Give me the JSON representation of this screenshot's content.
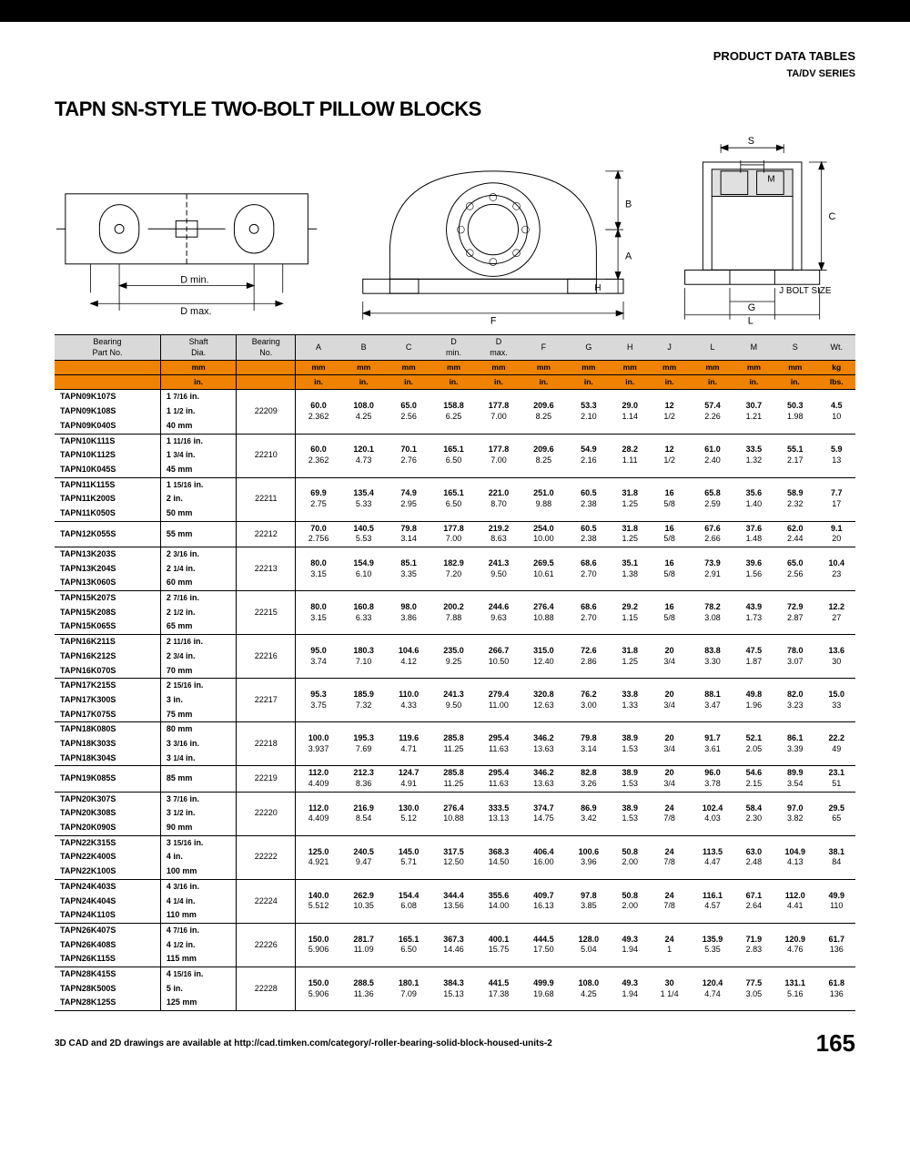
{
  "header": {
    "section": "PRODUCT DATA TABLES",
    "series": "TA/DV SERIES"
  },
  "title": "TAPN SN-STYLE TWO-BOLT PILLOW BLOCKS",
  "diagram_labels": {
    "d_min": "D min.",
    "d_max": "D max.",
    "F": "F",
    "B": "B",
    "A": "A",
    "H": "H",
    "S": "S",
    "M": "M",
    "C": "C",
    "G": "G",
    "L": "L",
    "J": "J BOLT SIZE"
  },
  "columns": [
    "Bearing Part No.",
    "Shaft Dia.",
    "Bearing No.",
    "A",
    "B",
    "C",
    "D min.",
    "D max.",
    "F",
    "G",
    "H",
    "J",
    "L",
    "M",
    "S",
    "Wt."
  ],
  "unit_row1": [
    "",
    "mm",
    "",
    "mm",
    "mm",
    "mm",
    "mm",
    "mm",
    "mm",
    "mm",
    "mm",
    "mm",
    "mm",
    "mm",
    "mm",
    "kg"
  ],
  "unit_row2": [
    "",
    "in.",
    "",
    "in.",
    "in.",
    "in.",
    "in.",
    "in.",
    "in.",
    "in.",
    "in.",
    "in.",
    "in.",
    "in.",
    "in.",
    "lbs."
  ],
  "groups": [
    {
      "parts": [
        [
          "TAPN09K107S",
          "1 7/16 in."
        ],
        [
          "TAPN09K108S",
          "1 1/2 in."
        ],
        [
          "TAPN09K040S",
          "40 mm"
        ]
      ],
      "bearing": "22209",
      "mm": [
        "60.0",
        "108.0",
        "65.0",
        "158.8",
        "177.8",
        "209.6",
        "53.3",
        "29.0",
        "12",
        "57.4",
        "30.7",
        "50.3",
        "4.5"
      ],
      "in": [
        "2.362",
        "4.25",
        "2.56",
        "6.25",
        "7.00",
        "8.25",
        "2.10",
        "1.14",
        "1/2",
        "2.26",
        "1.21",
        "1.98",
        "10"
      ]
    },
    {
      "parts": [
        [
          "TAPN10K111S",
          "1 11/16 in."
        ],
        [
          "TAPN10K112S",
          "1 3/4 in."
        ],
        [
          "TAPN10K045S",
          "45 mm"
        ]
      ],
      "bearing": "22210",
      "mm": [
        "60.0",
        "120.1",
        "70.1",
        "165.1",
        "177.8",
        "209.6",
        "54.9",
        "28.2",
        "12",
        "61.0",
        "33.5",
        "55.1",
        "5.9"
      ],
      "in": [
        "2.362",
        "4.73",
        "2.76",
        "6.50",
        "7.00",
        "8.25",
        "2.16",
        "1.11",
        "1/2",
        "2.40",
        "1.32",
        "2.17",
        "13"
      ]
    },
    {
      "parts": [
        [
          "TAPN11K115S",
          "1 15/16 in."
        ],
        [
          "TAPN11K200S",
          "2 in."
        ],
        [
          "TAPN11K050S",
          "50 mm"
        ]
      ],
      "bearing": "22211",
      "mm": [
        "69.9",
        "135.4",
        "74.9",
        "165.1",
        "221.0",
        "251.0",
        "60.5",
        "31.8",
        "16",
        "65.8",
        "35.6",
        "58.9",
        "7.7"
      ],
      "in": [
        "2.75",
        "5.33",
        "2.95",
        "6.50",
        "8.70",
        "9.88",
        "2.38",
        "1.25",
        "5/8",
        "2.59",
        "1.40",
        "2.32",
        "17"
      ]
    },
    {
      "parts": [
        [
          "TAPN12K055S",
          "55 mm"
        ]
      ],
      "bearing": "22212",
      "mm": [
        "70.0",
        "140.5",
        "79.8",
        "177.8",
        "219.2",
        "254.0",
        "60.5",
        "31.8",
        "16",
        "67.6",
        "37.6",
        "62.0",
        "9.1"
      ],
      "in": [
        "2.756",
        "5.53",
        "3.14",
        "7.00",
        "8.63",
        "10.00",
        "2.38",
        "1.25",
        "5/8",
        "2.66",
        "1.48",
        "2.44",
        "20"
      ]
    },
    {
      "parts": [
        [
          "TAPN13K203S",
          "2 3/16 in."
        ],
        [
          "TAPN13K204S",
          "2 1/4 in."
        ],
        [
          "TAPN13K060S",
          "60 mm"
        ]
      ],
      "bearing": "22213",
      "mm": [
        "80.0",
        "154.9",
        "85.1",
        "182.9",
        "241.3",
        "269.5",
        "68.6",
        "35.1",
        "16",
        "73.9",
        "39.6",
        "65.0",
        "10.4"
      ],
      "in": [
        "3.15",
        "6.10",
        "3.35",
        "7.20",
        "9.50",
        "10.61",
        "2.70",
        "1.38",
        "5/8",
        "2.91",
        "1.56",
        "2.56",
        "23"
      ]
    },
    {
      "parts": [
        [
          "TAPN15K207S",
          "2 7/16 in."
        ],
        [
          "TAPN15K208S",
          "2 1/2 in."
        ],
        [
          "TAPN15K065S",
          "65 mm"
        ]
      ],
      "bearing": "22215",
      "mm": [
        "80.0",
        "160.8",
        "98.0",
        "200.2",
        "244.6",
        "276.4",
        "68.6",
        "29.2",
        "16",
        "78.2",
        "43.9",
        "72.9",
        "12.2"
      ],
      "in": [
        "3.15",
        "6.33",
        "3.86",
        "7.88",
        "9.63",
        "10.88",
        "2.70",
        "1.15",
        "5/8",
        "3.08",
        "1.73",
        "2.87",
        "27"
      ]
    },
    {
      "parts": [
        [
          "TAPN16K211S",
          "2 11/16 in."
        ],
        [
          "TAPN16K212S",
          "2 3/4 in."
        ],
        [
          "TAPN16K070S",
          "70 mm"
        ]
      ],
      "bearing": "22216",
      "mm": [
        "95.0",
        "180.3",
        "104.6",
        "235.0",
        "266.7",
        "315.0",
        "72.6",
        "31.8",
        "20",
        "83.8",
        "47.5",
        "78.0",
        "13.6"
      ],
      "in": [
        "3.74",
        "7.10",
        "4.12",
        "9.25",
        "10.50",
        "12.40",
        "2.86",
        "1.25",
        "3/4",
        "3.30",
        "1.87",
        "3.07",
        "30"
      ]
    },
    {
      "parts": [
        [
          "TAPN17K215S",
          "2 15/16 in."
        ],
        [
          "TAPN17K300S",
          "3 in."
        ],
        [
          "TAPN17K075S",
          "75 mm"
        ]
      ],
      "bearing": "22217",
      "mm": [
        "95.3",
        "185.9",
        "110.0",
        "241.3",
        "279.4",
        "320.8",
        "76.2",
        "33.8",
        "20",
        "88.1",
        "49.8",
        "82.0",
        "15.0"
      ],
      "in": [
        "3.75",
        "7.32",
        "4.33",
        "9.50",
        "11.00",
        "12.63",
        "3.00",
        "1.33",
        "3/4",
        "3.47",
        "1.96",
        "3.23",
        "33"
      ]
    },
    {
      "parts": [
        [
          "TAPN18K080S",
          "80 mm"
        ],
        [
          "TAPN18K303S",
          "3 3/16 in."
        ],
        [
          "TAPN18K304S",
          "3 1/4 in."
        ]
      ],
      "bearing": "22218",
      "mm": [
        "100.0",
        "195.3",
        "119.6",
        "285.8",
        "295.4",
        "346.2",
        "79.8",
        "38.9",
        "20",
        "91.7",
        "52.1",
        "86.1",
        "22.2"
      ],
      "in": [
        "3.937",
        "7.69",
        "4.71",
        "11.25",
        "11.63",
        "13.63",
        "3.14",
        "1.53",
        "3/4",
        "3.61",
        "2.05",
        "3.39",
        "49"
      ]
    },
    {
      "parts": [
        [
          "TAPN19K085S",
          "85 mm"
        ]
      ],
      "bearing": "22219",
      "mm": [
        "112.0",
        "212.3",
        "124.7",
        "285.8",
        "295.4",
        "346.2",
        "82.8",
        "38.9",
        "20",
        "96.0",
        "54.6",
        "89.9",
        "23.1"
      ],
      "in": [
        "4.409",
        "8.36",
        "4.91",
        "11.25",
        "11.63",
        "13.63",
        "3.26",
        "1.53",
        "3/4",
        "3.78",
        "2.15",
        "3.54",
        "51"
      ]
    },
    {
      "parts": [
        [
          "TAPN20K307S",
          "3 7/16 in."
        ],
        [
          "TAPN20K308S",
          "3 1/2 in."
        ],
        [
          "TAPN20K090S",
          "90 mm"
        ]
      ],
      "bearing": "22220",
      "mm": [
        "112.0",
        "216.9",
        "130.0",
        "276.4",
        "333.5",
        "374.7",
        "86.9",
        "38.9",
        "24",
        "102.4",
        "58.4",
        "97.0",
        "29.5"
      ],
      "in": [
        "4.409",
        "8.54",
        "5.12",
        "10.88",
        "13.13",
        "14.75",
        "3.42",
        "1.53",
        "7/8",
        "4.03",
        "2.30",
        "3.82",
        "65"
      ]
    },
    {
      "parts": [
        [
          "TAPN22K315S",
          "3 15/16 in."
        ],
        [
          "TAPN22K400S",
          "4 in."
        ],
        [
          "TAPN22K100S",
          "100 mm"
        ]
      ],
      "bearing": "22222",
      "mm": [
        "125.0",
        "240.5",
        "145.0",
        "317.5",
        "368.3",
        "406.4",
        "100.6",
        "50.8",
        "24",
        "113.5",
        "63.0",
        "104.9",
        "38.1"
      ],
      "in": [
        "4.921",
        "9.47",
        "5.71",
        "12.50",
        "14.50",
        "16.00",
        "3.96",
        "2.00",
        "7/8",
        "4.47",
        "2.48",
        "4.13",
        "84"
      ]
    },
    {
      "parts": [
        [
          "TAPN24K403S",
          "4 3/16 in."
        ],
        [
          "TAPN24K404S",
          "4 1/4 in."
        ],
        [
          "TAPN24K110S",
          "110 mm"
        ]
      ],
      "bearing": "22224",
      "mm": [
        "140.0",
        "262.9",
        "154.4",
        "344.4",
        "355.6",
        "409.7",
        "97.8",
        "50.8",
        "24",
        "116.1",
        "67.1",
        "112.0",
        "49.9"
      ],
      "in": [
        "5.512",
        "10.35",
        "6.08",
        "13.56",
        "14.00",
        "16.13",
        "3.85",
        "2.00",
        "7/8",
        "4.57",
        "2.64",
        "4.41",
        "110"
      ]
    },
    {
      "parts": [
        [
          "TAPN26K407S",
          "4 7/16 in."
        ],
        [
          "TAPN26K408S",
          "4 1/2 in."
        ],
        [
          "TAPN26K115S",
          "115 mm"
        ]
      ],
      "bearing": "22226",
      "mm": [
        "150.0",
        "281.7",
        "165.1",
        "367.3",
        "400.1",
        "444.5",
        "128.0",
        "49.3",
        "24",
        "135.9",
        "71.9",
        "120.9",
        "61.7"
      ],
      "in": [
        "5.906",
        "11.09",
        "6.50",
        "14.46",
        "15.75",
        "17.50",
        "5.04",
        "1.94",
        "1",
        "5.35",
        "2.83",
        "4.76",
        "136"
      ]
    },
    {
      "parts": [
        [
          "TAPN28K415S",
          "4 15/16 in."
        ],
        [
          "TAPN28K500S",
          "5 in."
        ],
        [
          "TAPN28K125S",
          "125 mm"
        ]
      ],
      "bearing": "22228",
      "mm": [
        "150.0",
        "288.5",
        "180.1",
        "384.3",
        "441.5",
        "499.9",
        "108.0",
        "49.3",
        "30",
        "120.4",
        "77.5",
        "131.1",
        "61.8"
      ],
      "in": [
        "5.906",
        "11.36",
        "7.09",
        "15.13",
        "17.38",
        "19.68",
        "4.25",
        "1.94",
        "1 1/4",
        "4.74",
        "3.05",
        "5.16",
        "136"
      ]
    }
  ],
  "footer": {
    "note": "3D CAD and 2D drawings are available at http://cad.timken.com/category/-roller-bearing-solid-block-housed-units-2",
    "page": "165"
  },
  "colors": {
    "orange": "#ef8200",
    "gray": "#d9d9d9"
  }
}
